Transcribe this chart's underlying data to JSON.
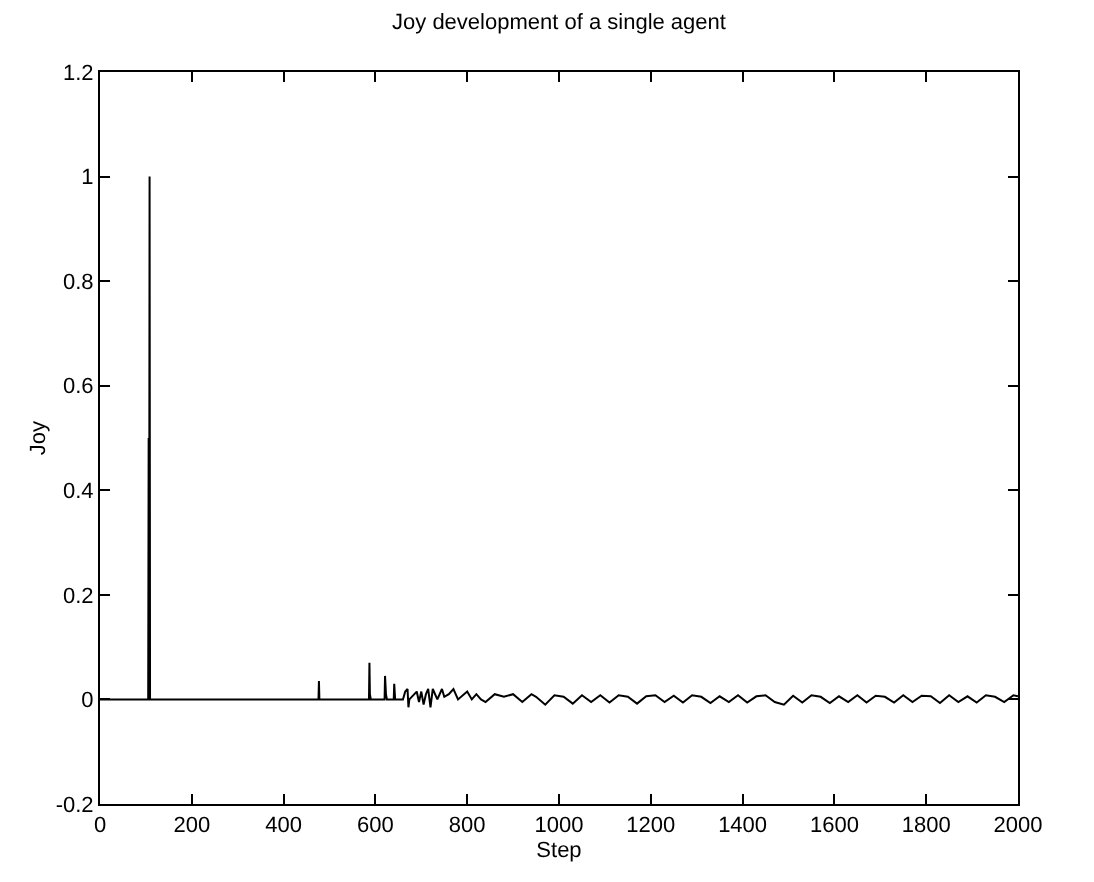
{
  "chart_data": {
    "type": "line",
    "title": "Joy development of a single agent",
    "xlabel": "Step",
    "ylabel": "Joy",
    "xlim": [
      0,
      2000
    ],
    "xticks": [
      0,
      200,
      400,
      600,
      800,
      1000,
      1200,
      1400,
      1600,
      1800,
      2000
    ],
    "ylim": [
      -0.2,
      1.2
    ],
    "yticks": [
      -0.2,
      0,
      0.2,
      0.4,
      0.6,
      0.8,
      1,
      1.2
    ],
    "series": [
      {
        "color": "#000000",
        "x": [
          0,
          105,
          106,
          107,
          108,
          109,
          476,
          477,
          478,
          586,
          587,
          588,
          590,
          620,
          621,
          623,
          625,
          640,
          641,
          643,
          660,
          665,
          670,
          672,
          674,
          690,
          695,
          700,
          705,
          710,
          715,
          720,
          725,
          735,
          745,
          750,
          760,
          770,
          780,
          800,
          810,
          820,
          830,
          840,
          860,
          880,
          900,
          920,
          940,
          950,
          970,
          990,
          1010,
          1030,
          1050,
          1070,
          1090,
          1110,
          1130,
          1150,
          1170,
          1190,
          1210,
          1230,
          1250,
          1270,
          1290,
          1310,
          1330,
          1350,
          1370,
          1390,
          1410,
          1430,
          1450,
          1470,
          1490,
          1510,
          1530,
          1550,
          1570,
          1590,
          1610,
          1630,
          1650,
          1670,
          1690,
          1710,
          1730,
          1750,
          1770,
          1790,
          1810,
          1830,
          1850,
          1870,
          1890,
          1910,
          1930,
          1950,
          1970,
          1990,
          2000
        ],
        "values": [
          0,
          0,
          0.5,
          0,
          1,
          0,
          0,
          0.035,
          0,
          0,
          0.07,
          0.01,
          0,
          0,
          0.045,
          0.01,
          0,
          0,
          0.03,
          0,
          0,
          0.015,
          0.02,
          -0.015,
          0,
          0.015,
          -0.005,
          0.015,
          -0.01,
          0.01,
          0.02,
          -0.015,
          0.02,
          0,
          0.02,
          0.005,
          0.01,
          0.02,
          0,
          0.015,
          0,
          0.01,
          0,
          -0.005,
          0.01,
          0.005,
          0.01,
          -0.005,
          0.01,
          0.005,
          -0.01,
          0.008,
          0.005,
          -0.008,
          0.008,
          -0.005,
          0.008,
          -0.006,
          0.008,
          0.005,
          -0.008,
          0.006,
          0.008,
          -0.005,
          0.007,
          -0.006,
          0.008,
          0.005,
          -0.007,
          0.006,
          -0.005,
          0.008,
          -0.006,
          0.006,
          0.008,
          -0.005,
          -0.01,
          0.007,
          -0.006,
          0.008,
          0.005,
          -0.007,
          0.006,
          -0.005,
          0.008,
          -0.006,
          0.007,
          0.005,
          -0.006,
          0.008,
          -0.005,
          0.007,
          0.006,
          -0.007,
          0.008,
          -0.005,
          0.006,
          -0.006,
          0.008,
          0.005,
          -0.005,
          0.008,
          0.006
        ]
      }
    ]
  }
}
